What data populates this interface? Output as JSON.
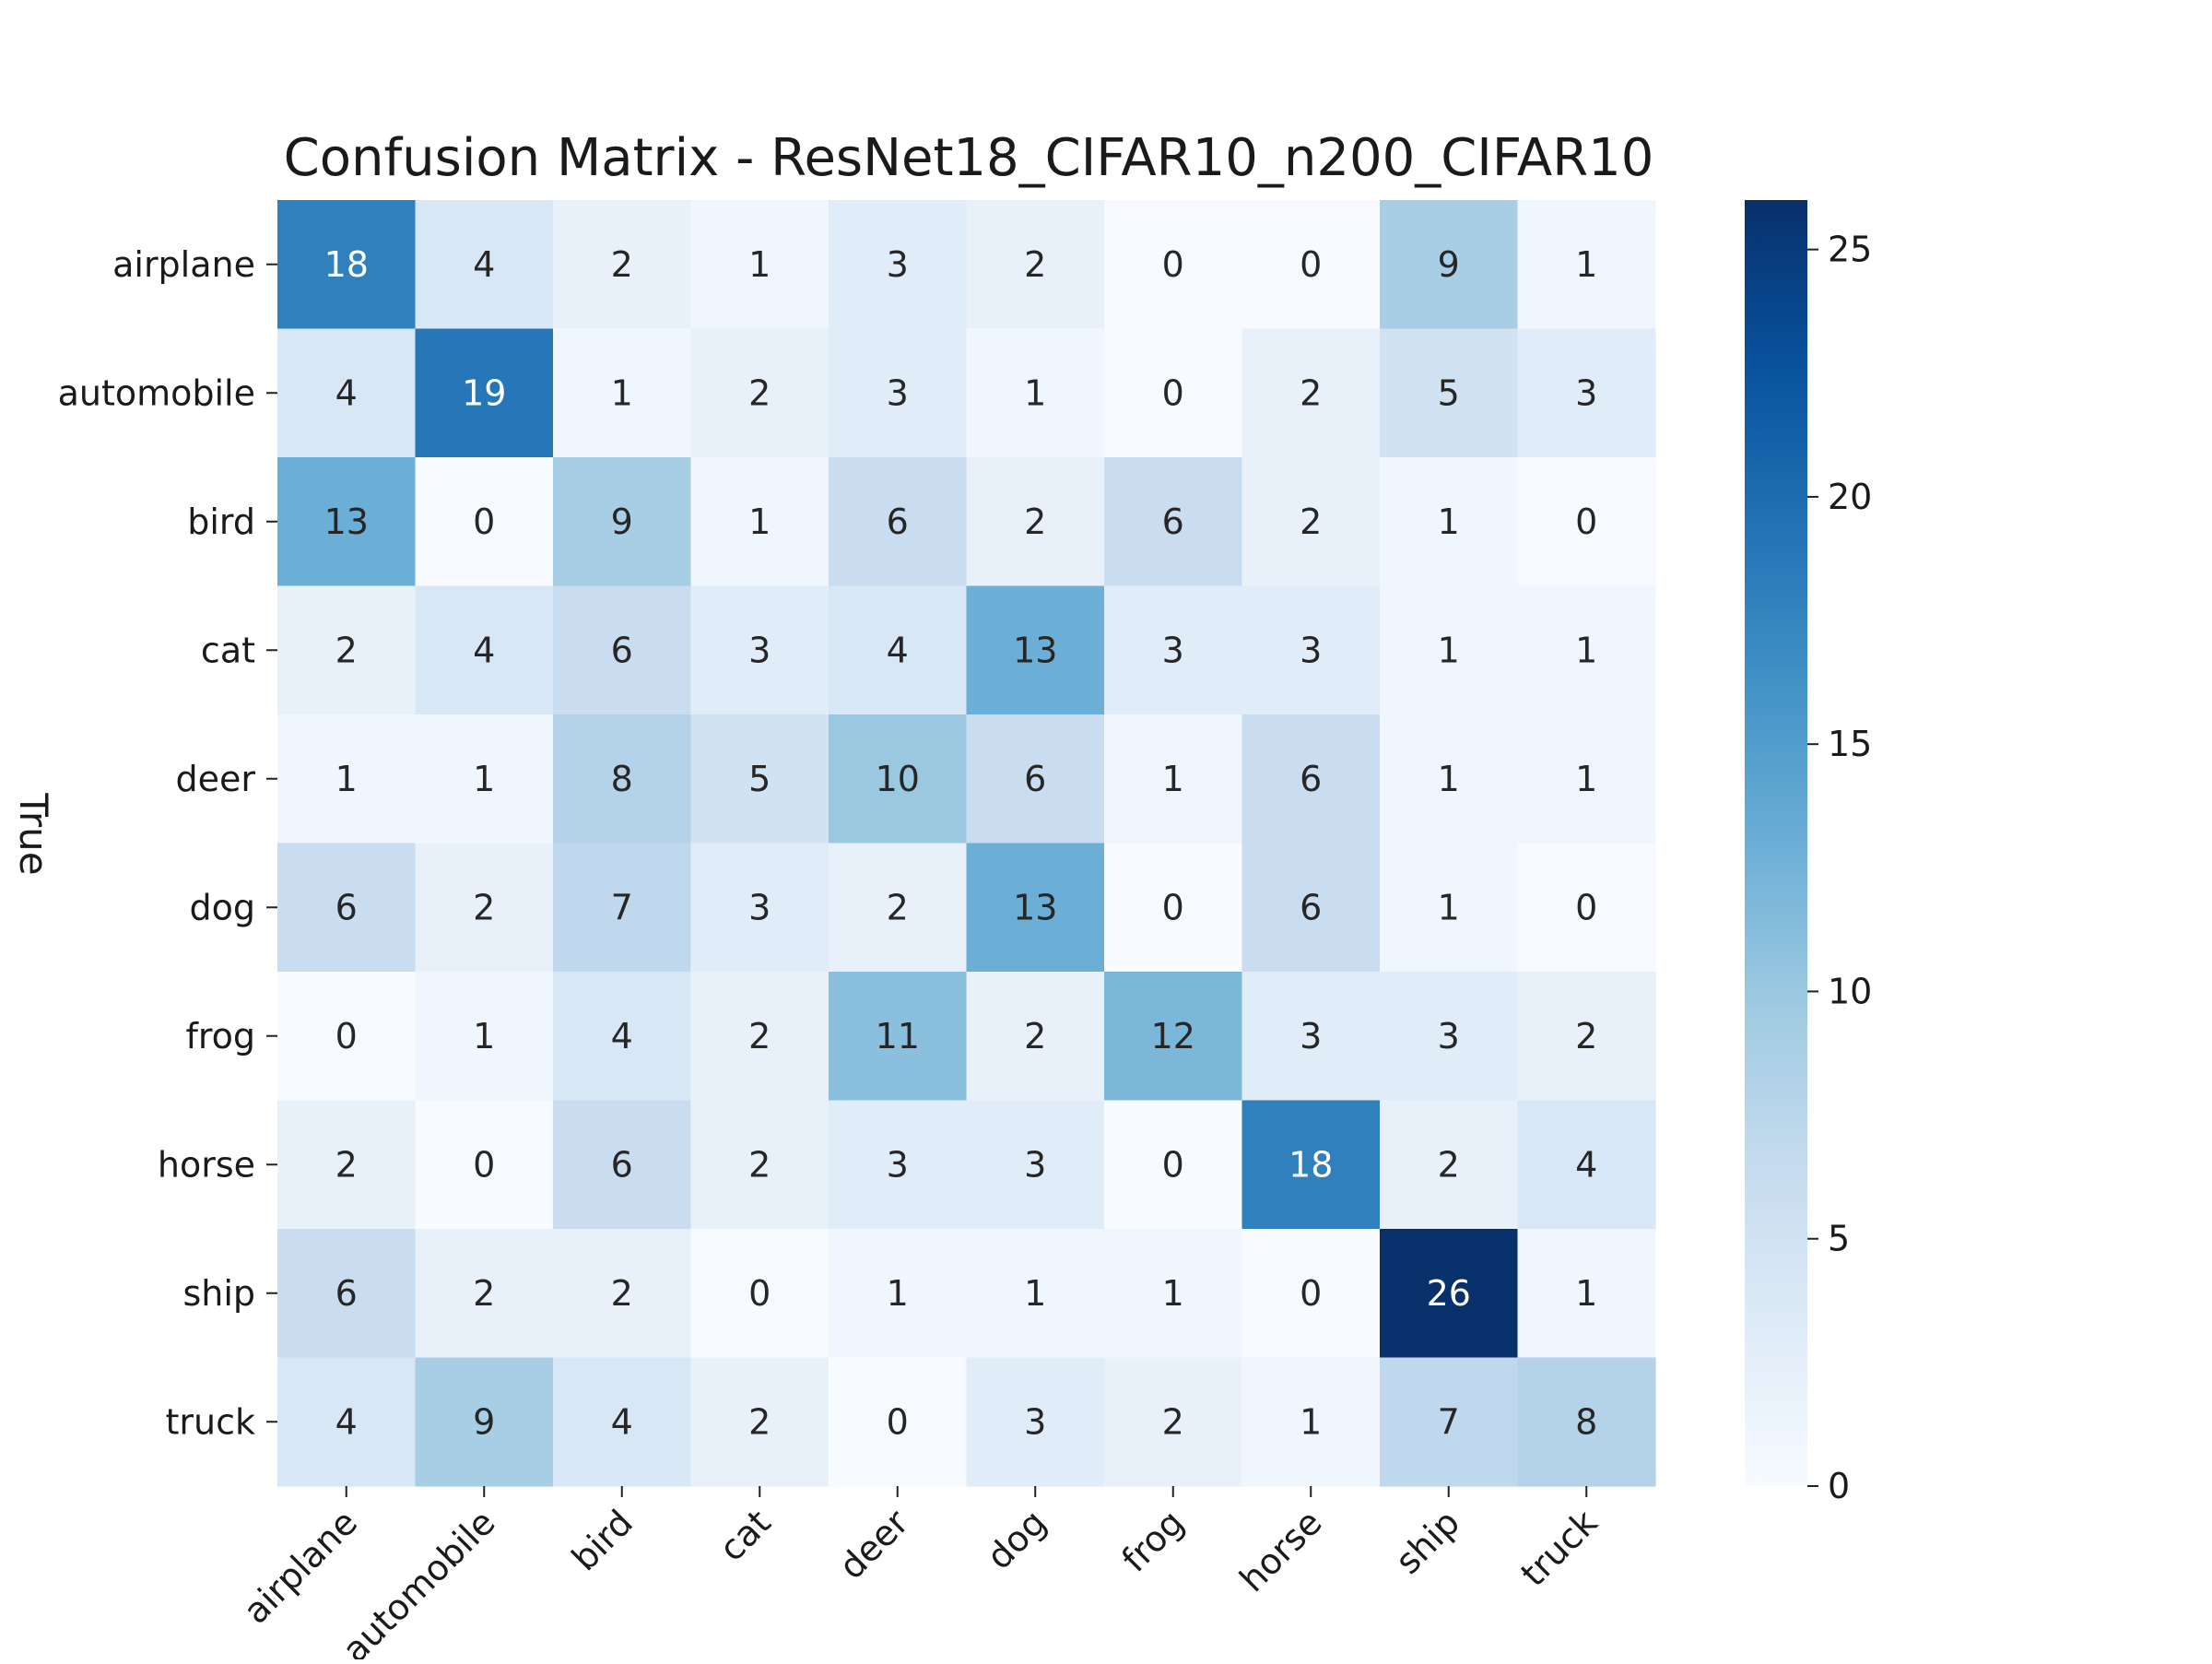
{
  "chart_data": {
    "type": "heatmap",
    "title": "Confusion Matrix - ResNet18_CIFAR10_n200_CIFAR10",
    "ylabel": "True",
    "xlabel": "",
    "x_categories": [
      "airplane",
      "automobile",
      "bird",
      "cat",
      "deer",
      "dog",
      "frog",
      "horse",
      "ship",
      "truck"
    ],
    "y_categories": [
      "airplane",
      "automobile",
      "bird",
      "cat",
      "deer",
      "dog",
      "frog",
      "horse",
      "ship",
      "truck"
    ],
    "values": [
      [
        18,
        4,
        2,
        1,
        3,
        2,
        0,
        0,
        9,
        1
      ],
      [
        4,
        19,
        1,
        2,
        3,
        1,
        0,
        2,
        5,
        3
      ],
      [
        13,
        0,
        9,
        1,
        6,
        2,
        6,
        2,
        1,
        0
      ],
      [
        2,
        4,
        6,
        3,
        4,
        13,
        3,
        3,
        1,
        1
      ],
      [
        1,
        1,
        8,
        5,
        10,
        6,
        1,
        6,
        1,
        1
      ],
      [
        6,
        2,
        7,
        3,
        2,
        13,
        0,
        6,
        1,
        0
      ],
      [
        0,
        1,
        4,
        2,
        11,
        2,
        12,
        3,
        3,
        2
      ],
      [
        2,
        0,
        6,
        2,
        3,
        3,
        0,
        18,
        2,
        4
      ],
      [
        6,
        2,
        2,
        0,
        1,
        1,
        1,
        0,
        26,
        1
      ],
      [
        4,
        9,
        4,
        2,
        0,
        3,
        2,
        1,
        7,
        8
      ]
    ],
    "colormap": "Blues",
    "vmin": 0,
    "vmax": 26,
    "colorbar_ticks": [
      0,
      5,
      10,
      15,
      20,
      25
    ],
    "annotations": true,
    "grid": false,
    "colors": {
      "low": "#f7fbff",
      "high": "#08306b"
    }
  }
}
